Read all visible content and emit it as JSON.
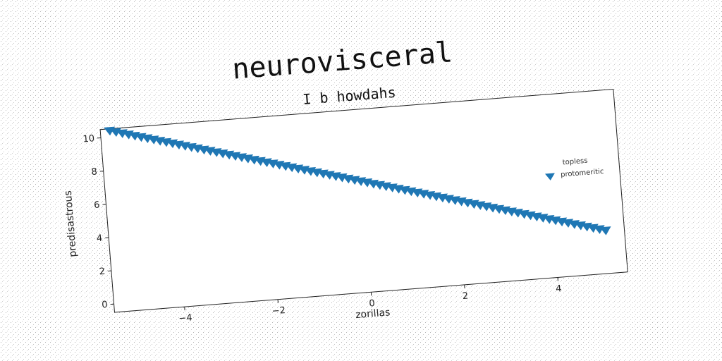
{
  "chart_data": {
    "type": "scatter",
    "title": "neurovisceral",
    "subtitle": "I b howdahs",
    "xlabel": "zorillas",
    "ylabel": "predisastrous",
    "xlim": [
      -5.5,
      5.5
    ],
    "ylim": [
      -0.5,
      10.5
    ],
    "xticks": [
      -4,
      -2,
      0,
      2,
      4
    ],
    "xtick_labels": [
      "−4",
      "−2",
      "0",
      "2",
      "4"
    ],
    "yticks": [
      0,
      2,
      4,
      6,
      8,
      10
    ],
    "ytick_labels": [
      "0",
      "2",
      "4",
      "6",
      "8",
      "10"
    ],
    "grid": false,
    "legend": {
      "title": "topless",
      "position": "right",
      "entries": [
        "protomeritic"
      ]
    },
    "series": [
      {
        "name": "protomeritic",
        "marker": "triangle-down",
        "color": "#1f77b4",
        "x_start": -5.3,
        "x_end": 5.1,
        "y_start": 10.4,
        "y_end": 2.1,
        "n_points": 80
      }
    ]
  }
}
